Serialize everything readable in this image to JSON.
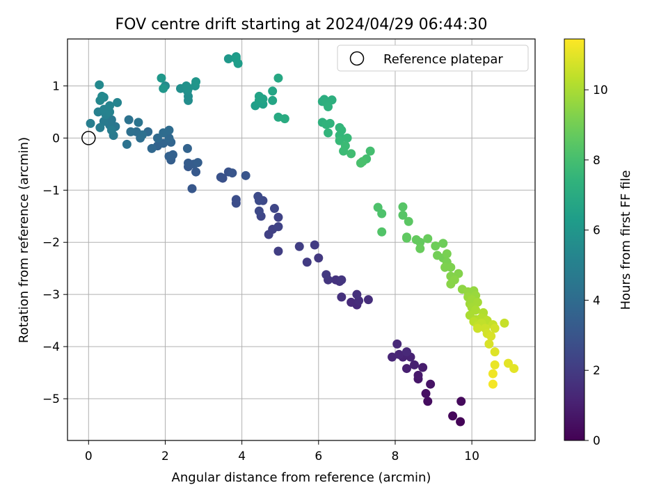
{
  "chart_data": {
    "type": "scatter",
    "title": "FOV centre drift starting at 2024/04/29 06:44:30",
    "xlabel": "Angular distance from reference (arcmin)",
    "ylabel": "Rotation from reference (arcmin)",
    "xlim": [
      -0.55,
      11.65
    ],
    "ylim": [
      -5.8,
      1.9
    ],
    "xticks": [
      0,
      2,
      4,
      6,
      8,
      10
    ],
    "yticks": [
      -5,
      -4,
      -3,
      -2,
      -1,
      0,
      1
    ],
    "xtick_labels": [
      "0",
      "2",
      "4",
      "6",
      "8",
      "10"
    ],
    "ytick_labels": [
      "−5",
      "−4",
      "−3",
      "−2",
      "−1",
      "0",
      "1"
    ],
    "grid": true,
    "legend": {
      "placement": "top-right",
      "label": "Reference platepar"
    },
    "reference_point": {
      "x": 0,
      "y": 0
    },
    "colorbar": {
      "label": "Hours from first FF file",
      "colormap": "viridis",
      "range": [
        0,
        11.45
      ],
      "ticks": [
        0,
        2,
        4,
        6,
        8,
        10
      ],
      "tick_labels": [
        "0",
        "2",
        "4",
        "6",
        "8",
        "10"
      ]
    },
    "points": [
      [
        9.7,
        -5.44,
        0.1
      ],
      [
        9.5,
        -5.33,
        0.2
      ],
      [
        9.72,
        -5.05,
        0.3
      ],
      [
        8.85,
        -5.05,
        0.4
      ],
      [
        8.8,
        -4.9,
        0.5
      ],
      [
        8.92,
        -4.72,
        0.6
      ],
      [
        8.6,
        -4.62,
        0.7
      ],
      [
        8.6,
        -4.55,
        0.8
      ],
      [
        8.72,
        -4.4,
        0.9
      ],
      [
        8.3,
        -4.42,
        1.0
      ],
      [
        8.5,
        -4.35,
        1.0
      ],
      [
        8.2,
        -4.2,
        1.1
      ],
      [
        8.4,
        -4.2,
        1.1
      ],
      [
        7.92,
        -4.2,
        1.2
      ],
      [
        8.1,
        -4.15,
        1.2
      ],
      [
        8.3,
        -4.1,
        1.3
      ],
      [
        8.05,
        -3.95,
        1.3
      ],
      [
        7.0,
        -3.2,
        1.4
      ],
      [
        6.85,
        -3.15,
        1.4
      ],
      [
        7.05,
        -3.12,
        1.5
      ],
      [
        7.3,
        -3.1,
        1.5
      ],
      [
        6.6,
        -3.05,
        1.6
      ],
      [
        7.0,
        -3.0,
        1.6
      ],
      [
        6.55,
        -2.75,
        1.7
      ],
      [
        6.45,
        -2.72,
        1.7
      ],
      [
        6.6,
        -2.72,
        1.8
      ],
      [
        6.25,
        -2.72,
        1.8
      ],
      [
        6.2,
        -2.62,
        1.9
      ],
      [
        6.0,
        -2.3,
        1.9
      ],
      [
        5.7,
        -2.38,
        2.0
      ],
      [
        5.9,
        -2.05,
        2.0
      ],
      [
        5.5,
        -2.08,
        2.1
      ],
      [
        4.95,
        -2.17,
        2.1
      ],
      [
        4.7,
        -1.85,
        2.2
      ],
      [
        4.8,
        -1.75,
        2.2
      ],
      [
        4.95,
        -1.7,
        2.3
      ],
      [
        4.95,
        -1.52,
        2.3
      ],
      [
        4.85,
        -1.35,
        2.4
      ],
      [
        4.5,
        -1.5,
        2.4
      ],
      [
        4.45,
        -1.4,
        2.5
      ],
      [
        4.55,
        -1.2,
        2.5
      ],
      [
        4.45,
        -1.2,
        2.6
      ],
      [
        4.42,
        -1.12,
        2.6
      ],
      [
        3.85,
        -1.25,
        2.7
      ],
      [
        3.85,
        -1.18,
        2.7
      ],
      [
        3.5,
        -0.77,
        2.8
      ],
      [
        3.45,
        -0.75,
        2.9
      ],
      [
        3.65,
        -0.65,
        2.9
      ],
      [
        3.75,
        -0.67,
        3.0
      ],
      [
        4.1,
        -0.72,
        3.0
      ],
      [
        2.7,
        -0.97,
        3.1
      ],
      [
        2.8,
        -0.65,
        3.2
      ],
      [
        2.6,
        -0.55,
        3.2
      ],
      [
        2.75,
        -0.5,
        3.3
      ],
      [
        2.6,
        -0.48,
        3.3
      ],
      [
        2.85,
        -0.47,
        3.4
      ],
      [
        2.15,
        -0.42,
        3.4
      ],
      [
        2.2,
        -0.32,
        3.5
      ],
      [
        2.1,
        -0.35,
        3.5
      ],
      [
        2.58,
        -0.2,
        3.6
      ],
      [
        1.8,
        -0.15,
        3.6
      ],
      [
        2.15,
        -0.08,
        3.7
      ],
      [
        1.95,
        -0.1,
        3.7
      ],
      [
        2.1,
        0.0,
        3.8
      ],
      [
        1.65,
        -0.2,
        3.8
      ],
      [
        1.8,
        0.0,
        3.9
      ],
      [
        1.55,
        0.12,
        3.9
      ],
      [
        1.95,
        0.1,
        4.0
      ],
      [
        2.1,
        0.15,
        4.0
      ],
      [
        1.35,
        0.0,
        4.1
      ],
      [
        1.25,
        0.12,
        4.1
      ],
      [
        1.4,
        0.06,
        4.2
      ],
      [
        1.1,
        0.12,
        4.2
      ],
      [
        1.0,
        -0.12,
        4.3
      ],
      [
        1.05,
        0.35,
        4.3
      ],
      [
        1.3,
        0.3,
        4.4
      ],
      [
        0.7,
        0.22,
        4.5
      ],
      [
        0.55,
        0.28,
        4.5
      ],
      [
        0.6,
        0.35,
        4.6
      ],
      [
        0.55,
        0.25,
        4.6
      ],
      [
        0.65,
        0.05,
        4.7
      ],
      [
        0.4,
        0.32,
        4.7
      ],
      [
        0.3,
        0.2,
        4.8
      ],
      [
        0.6,
        0.15,
        4.8
      ],
      [
        0.05,
        0.28,
        4.9
      ],
      [
        0.25,
        0.5,
        5.0
      ],
      [
        0.45,
        0.45,
        5.0
      ],
      [
        0.55,
        0.5,
        5.1
      ],
      [
        0.4,
        0.55,
        5.1
      ],
      [
        0.55,
        0.62,
        5.2
      ],
      [
        0.75,
        0.68,
        5.2
      ],
      [
        0.3,
        0.72,
        5.3
      ],
      [
        0.4,
        0.78,
        5.3
      ],
      [
        0.35,
        0.8,
        5.4
      ],
      [
        0.28,
        1.02,
        5.4
      ],
      [
        2.0,
        1.0,
        5.5
      ],
      [
        2.6,
        0.72,
        5.6
      ],
      [
        2.6,
        0.8,
        5.6
      ],
      [
        2.58,
        0.9,
        5.7
      ],
      [
        2.4,
        0.95,
        5.7
      ],
      [
        2.55,
        1.0,
        5.8
      ],
      [
        2.6,
        0.95,
        5.8
      ],
      [
        2.78,
        1.0,
        5.9
      ],
      [
        2.8,
        1.08,
        6.0
      ],
      [
        1.95,
        0.95,
        6.0
      ],
      [
        1.9,
        1.15,
        6.1
      ],
      [
        3.65,
        1.52,
        6.1
      ],
      [
        3.85,
        1.56,
        6.2
      ],
      [
        3.9,
        1.43,
        6.3
      ],
      [
        3.85,
        1.52,
        6.3
      ],
      [
        4.35,
        0.62,
        6.4
      ],
      [
        4.55,
        0.65,
        6.5
      ],
      [
        4.45,
        0.72,
        6.5
      ],
      [
        4.45,
        0.8,
        6.6
      ],
      [
        4.55,
        0.75,
        6.6
      ],
      [
        4.8,
        0.72,
        6.7
      ],
      [
        4.8,
        0.9,
        6.7
      ],
      [
        4.95,
        1.15,
        6.8
      ],
      [
        4.95,
        0.4,
        6.9
      ],
      [
        5.12,
        0.37,
        7.0
      ],
      [
        6.1,
        0.7,
        7.1
      ],
      [
        6.15,
        0.74,
        7.1
      ],
      [
        6.35,
        0.73,
        7.2
      ],
      [
        6.2,
        0.68,
        7.2
      ],
      [
        6.25,
        0.6,
        7.3
      ],
      [
        6.1,
        0.3,
        7.3
      ],
      [
        6.2,
        0.26,
        7.4
      ],
      [
        6.3,
        0.28,
        7.4
      ],
      [
        6.25,
        0.1,
        7.5
      ],
      [
        6.55,
        0.2,
        7.5
      ],
      [
        6.6,
        0.15,
        7.6
      ],
      [
        6.55,
        0.05,
        7.6
      ],
      [
        6.55,
        -0.05,
        7.7
      ],
      [
        6.75,
        0.0,
        7.7
      ],
      [
        6.7,
        -0.15,
        7.8
      ],
      [
        6.65,
        -0.25,
        7.8
      ],
      [
        6.85,
        -0.3,
        7.9
      ],
      [
        7.35,
        -0.25,
        8.0
      ],
      [
        7.25,
        -0.4,
        8.0
      ],
      [
        7.15,
        -0.45,
        8.1
      ],
      [
        7.1,
        -0.48,
        8.1
      ],
      [
        7.55,
        -1.33,
        8.2
      ],
      [
        7.65,
        -1.45,
        8.2
      ],
      [
        7.65,
        -1.8,
        8.3
      ],
      [
        8.2,
        -1.32,
        8.4
      ],
      [
        8.2,
        -1.48,
        8.4
      ],
      [
        8.35,
        -1.6,
        8.5
      ],
      [
        8.3,
        -1.92,
        8.6
      ],
      [
        8.3,
        -1.9,
        8.6
      ],
      [
        8.55,
        -1.95,
        8.7
      ],
      [
        8.65,
        -2.0,
        8.7
      ],
      [
        8.65,
        -2.12,
        8.8
      ],
      [
        8.85,
        -1.93,
        8.8
      ],
      [
        9.05,
        -2.07,
        8.9
      ],
      [
        9.25,
        -2.02,
        8.9
      ],
      [
        9.1,
        -2.25,
        9.0
      ],
      [
        9.25,
        -2.3,
        9.0
      ],
      [
        9.35,
        -2.22,
        9.1
      ],
      [
        9.35,
        -2.38,
        9.1
      ],
      [
        9.3,
        -2.48,
        9.2
      ],
      [
        9.45,
        -2.48,
        9.2
      ],
      [
        9.65,
        -2.6,
        9.3
      ],
      [
        9.45,
        -2.65,
        9.3
      ],
      [
        9.55,
        -2.72,
        9.4
      ],
      [
        9.45,
        -2.8,
        9.4
      ],
      [
        9.75,
        -2.9,
        9.5
      ],
      [
        9.9,
        -2.95,
        9.6
      ],
      [
        10.05,
        -2.93,
        9.6
      ],
      [
        9.9,
        -3.05,
        9.7
      ],
      [
        10.1,
        -3.02,
        9.7
      ],
      [
        10.0,
        -3.1,
        9.8
      ],
      [
        9.95,
        -3.18,
        9.8
      ],
      [
        10.15,
        -3.15,
        9.9
      ],
      [
        10.0,
        -3.25,
        9.9
      ],
      [
        10.1,
        -3.3,
        10.0
      ],
      [
        9.95,
        -3.4,
        10.0
      ],
      [
        10.3,
        -3.35,
        10.1
      ],
      [
        10.1,
        -3.48,
        10.1
      ],
      [
        10.25,
        -3.45,
        10.2
      ],
      [
        10.35,
        -3.48,
        10.2
      ],
      [
        10.05,
        -3.52,
        10.3
      ],
      [
        10.4,
        -3.5,
        10.3
      ],
      [
        10.25,
        -3.55,
        10.4
      ],
      [
        10.15,
        -3.6,
        10.4
      ],
      [
        10.55,
        -3.58,
        10.5
      ],
      [
        10.85,
        -3.55,
        10.5
      ],
      [
        10.15,
        -3.65,
        10.6
      ],
      [
        10.35,
        -3.65,
        10.6
      ],
      [
        10.6,
        -3.65,
        10.7
      ],
      [
        10.4,
        -3.75,
        10.7
      ],
      [
        10.5,
        -3.8,
        10.8
      ],
      [
        10.45,
        -3.95,
        10.8
      ],
      [
        10.6,
        -4.1,
        10.9
      ],
      [
        10.95,
        -4.32,
        11.0
      ],
      [
        11.1,
        -4.42,
        11.0
      ],
      [
        10.6,
        -4.35,
        11.1
      ],
      [
        10.55,
        -4.52,
        11.2
      ],
      [
        10.55,
        -4.72,
        11.3
      ]
    ]
  }
}
